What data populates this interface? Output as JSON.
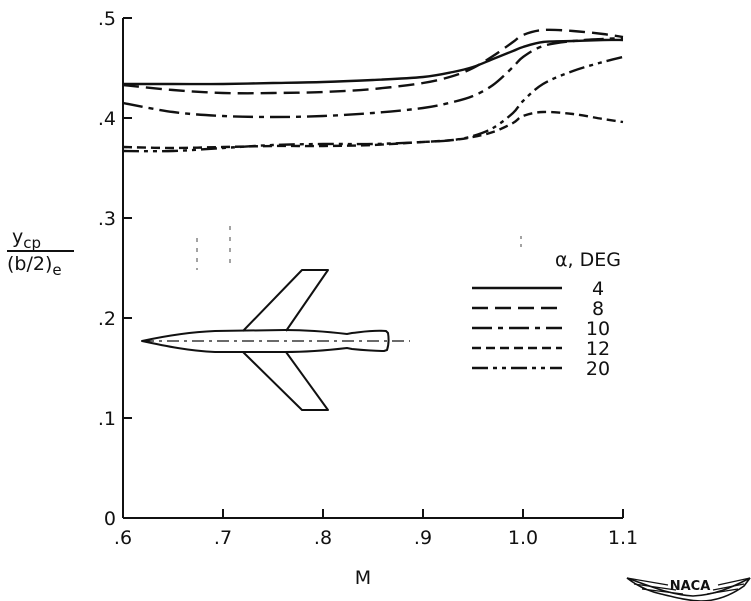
{
  "chart_data": {
    "type": "line",
    "xlabel": "M",
    "ylabel_main": "y",
    "ylabel_sub": "cp",
    "ylabel_den_main": "(b/2)",
    "ylabel_den_sub": "e",
    "xlim": [
      0.6,
      1.1
    ],
    "ylim": [
      0,
      0.5
    ],
    "x_ticks": [
      0.6,
      0.7,
      0.8,
      0.9,
      1.0,
      1.1
    ],
    "x_tick_labels": [
      ".6",
      ".7",
      ".8",
      ".9",
      "1.0",
      "1.1"
    ],
    "y_ticks": [
      0,
      0.1,
      0.2,
      0.3,
      0.4,
      0.5
    ],
    "y_tick_labels": [
      "0",
      ".1",
      ".2",
      ".3",
      ".4",
      ".5"
    ],
    "grid": false,
    "legend_title": "α, DEG",
    "legend_placement": "right",
    "series": [
      {
        "name": "4",
        "dash": "solid",
        "x": [
          0.6,
          0.65,
          0.7,
          0.75,
          0.8,
          0.85,
          0.9,
          0.93,
          0.95,
          0.97,
          0.99,
          1.0,
          1.02,
          1.05,
          1.08,
          1.1
        ],
        "y": [
          0.434,
          0.434,
          0.434,
          0.435,
          0.436,
          0.438,
          0.441,
          0.446,
          0.451,
          0.459,
          0.467,
          0.471,
          0.476,
          0.477,
          0.478,
          0.478
        ]
      },
      {
        "name": "8",
        "dash": "long",
        "x": [
          0.6,
          0.65,
          0.7,
          0.75,
          0.8,
          0.85,
          0.9,
          0.93,
          0.95,
          0.97,
          0.99,
          1.0,
          1.02,
          1.05,
          1.08,
          1.1
        ],
        "y": [
          0.433,
          0.428,
          0.425,
          0.425,
          0.426,
          0.429,
          0.435,
          0.442,
          0.45,
          0.462,
          0.476,
          0.483,
          0.488,
          0.487,
          0.484,
          0.481
        ]
      },
      {
        "name": "10",
        "dash": "dashdot",
        "x": [
          0.6,
          0.65,
          0.7,
          0.75,
          0.8,
          0.85,
          0.9,
          0.93,
          0.95,
          0.97,
          0.99,
          1.0,
          1.02,
          1.05,
          1.08,
          1.1
        ],
        "y": [
          0.415,
          0.406,
          0.402,
          0.401,
          0.402,
          0.405,
          0.41,
          0.416,
          0.422,
          0.433,
          0.451,
          0.461,
          0.472,
          0.477,
          0.479,
          0.48
        ]
      },
      {
        "name": "12",
        "dash": "short",
        "x": [
          0.6,
          0.65,
          0.7,
          0.75,
          0.8,
          0.85,
          0.9,
          0.93,
          0.95,
          0.97,
          0.99,
          1.0,
          1.02,
          1.05,
          1.08,
          1.1
        ],
        "y": [
          0.371,
          0.37,
          0.371,
          0.372,
          0.372,
          0.373,
          0.376,
          0.378,
          0.381,
          0.386,
          0.395,
          0.402,
          0.406,
          0.404,
          0.399,
          0.396
        ]
      },
      {
        "name": "20",
        "dash": "dashdotdot",
        "x": [
          0.6,
          0.65,
          0.7,
          0.75,
          0.8,
          0.85,
          0.9,
          0.93,
          0.95,
          0.97,
          0.99,
          1.0,
          1.02,
          1.05,
          1.08,
          1.1
        ],
        "y": [
          0.367,
          0.367,
          0.37,
          0.373,
          0.374,
          0.374,
          0.376,
          0.378,
          0.382,
          0.39,
          0.405,
          0.417,
          0.434,
          0.447,
          0.456,
          0.461
        ]
      }
    ]
  },
  "logo": {
    "text": "NACA"
  }
}
